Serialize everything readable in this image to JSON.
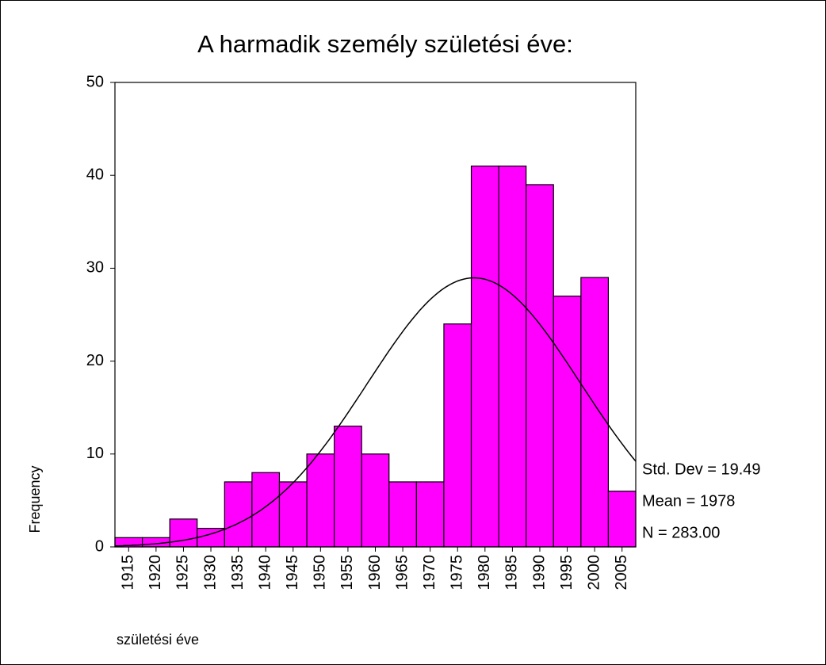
{
  "chart_data": {
    "type": "histogram",
    "title": "A harmadik személy születési éve:",
    "xlabel": "születési éve",
    "ylabel": "Frequency",
    "bins": [
      1912.5,
      1917.5,
      1922.5,
      1927.5,
      1932.5,
      1937.5,
      1942.5,
      1947.5,
      1952.5,
      1957.5,
      1962.5,
      1967.5,
      1972.5,
      1977.5,
      1982.5,
      1987.5,
      1992.5,
      1997.5,
      2002.5,
      2007.5
    ],
    "values": [
      1,
      1,
      3,
      2,
      7,
      8,
      7,
      10,
      13,
      10,
      7,
      7,
      24,
      41,
      41,
      39,
      27,
      29,
      6
    ],
    "color": "#ff00ff",
    "xlim": [
      1912.5,
      2007.5
    ],
    "xticks": [
      1915,
      1920,
      1925,
      1930,
      1935,
      1940,
      1945,
      1950,
      1955,
      1960,
      1965,
      1970,
      1975,
      1980,
      1985,
      1990,
      1995,
      2000,
      2005
    ],
    "ylim": [
      0,
      50
    ],
    "yticks": [
      0,
      10,
      20,
      30,
      40,
      50
    ],
    "curve": {
      "mean": 1978,
      "sd": 19.49,
      "n": 283
    },
    "annotations": [
      "Std. Dev = 19.49",
      "Mean = 1978",
      "N = 283.00"
    ]
  }
}
